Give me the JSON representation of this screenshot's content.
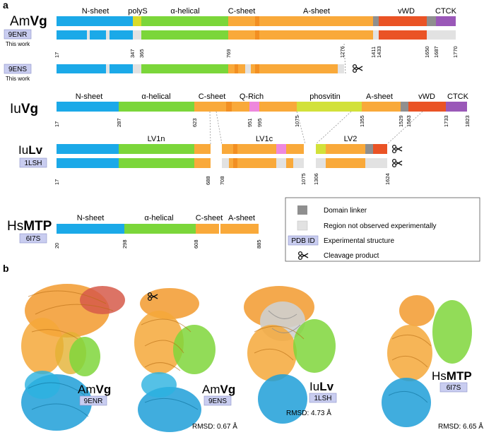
{
  "colors": {
    "nsheet": "#1ba9e8",
    "polys": "#d9dc2a",
    "helical": "#7bd63a",
    "csheet": "#f9a93a",
    "csheet_dark": "#f28f22",
    "asheet": "#f9a93a",
    "vwd": "#ea5325",
    "ctck": "#9a58b8",
    "qrich": "#ee88dd",
    "phosvitin": "#d2e13a",
    "linker": "#8f8f8f",
    "unobserved": "#e2e2e2",
    "pdb_bg": "#c9cdf0"
  },
  "panel_a": {
    "label": "a",
    "amvg": {
      "name_prefix": "Am",
      "name_bold": "Vg",
      "domain_labels": [
        "N-sheet",
        "polyS",
        "α-helical",
        "C-sheet",
        "A-sheet",
        "vWD",
        "CTCK"
      ],
      "pdb1": "9ENR",
      "note1": "This work",
      "ticks1": [
        "17",
        "347",
        "365",
        "769",
        "1276",
        "1411",
        "1433",
        "1650",
        "1687",
        "1770"
      ],
      "pdb2": "9ENS",
      "note2": "This work"
    },
    "iuvg": {
      "name_prefix": "Iu",
      "name_bold": "Vg",
      "domain_labels": [
        "N-sheet",
        "α-helical",
        "C-sheet",
        "Q-Rich",
        "phosvitin",
        "A-sheet",
        "vWD",
        "CTCK"
      ],
      "ticks": [
        "17",
        "287",
        "623",
        "951",
        "995",
        "1075",
        "1355",
        "1529",
        "1563",
        "1733",
        "1823"
      ]
    },
    "iulv": {
      "name_prefix": "Iu",
      "name_bold": "Lv",
      "segment_labels": [
        "LV1n",
        "LV1c",
        "LV2"
      ],
      "pdb": "1LSH",
      "ticks": [
        "17",
        "688",
        "708",
        "1075",
        "1306",
        "1624"
      ]
    },
    "hsmtp": {
      "name_prefix": "Hs",
      "name_bold": "MTP",
      "pdb": "6I7S",
      "domain_labels": [
        "N-sheet",
        "α-helical",
        "C-sheet",
        "A-sheet"
      ],
      "ticks": [
        "20",
        "298",
        "608",
        "885"
      ]
    },
    "legend": {
      "domain_linker": "Domain linker",
      "not_observed": "Region not observed experimentally",
      "pdb_id": "PDB ID",
      "experimental": "Experimental structure",
      "cleavage": "Cleavage product"
    }
  },
  "panel_b": {
    "label": "b",
    "structures": [
      {
        "prefix": "Am",
        "bold": "Vg",
        "pdb": "9ENR",
        "rmsd": ""
      },
      {
        "prefix": "Am",
        "bold": "Vg",
        "pdb": "9ENS",
        "rmsd": "RMSD: 0.67 Å"
      },
      {
        "prefix": "Iu",
        "bold": "Lv",
        "pdb": "1LSH",
        "rmsd": "RMSD: 4.73 Å"
      },
      {
        "prefix": "Hs",
        "bold": "MTP",
        "pdb": "6I7S",
        "rmsd": "RMSD: 6.65 Å"
      }
    ]
  }
}
